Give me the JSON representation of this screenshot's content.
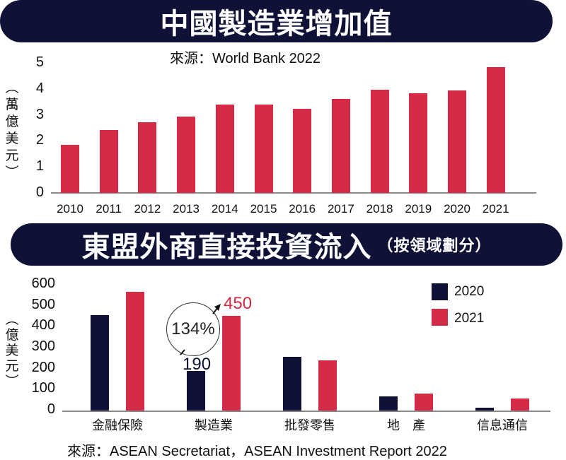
{
  "chart_data": [
    {
      "type": "bar",
      "title": "中國製造業增加值",
      "subtitle": "來源：World Bank 2022",
      "xlabel": "",
      "ylabel": "（萬億美元）",
      "ylim": [
        0,
        5
      ],
      "yticks": [
        0,
        1,
        2,
        3,
        4,
        5
      ],
      "grid": false,
      "categories": [
        "2010",
        "2011",
        "2012",
        "2013",
        "2014",
        "2015",
        "2016",
        "2017",
        "2018",
        "2019",
        "2020",
        "2021"
      ],
      "values": [
        1.85,
        2.43,
        2.72,
        2.93,
        3.39,
        3.39,
        3.23,
        3.62,
        3.97,
        3.84,
        3.95,
        4.84
      ],
      "color": "#d42a46"
    },
    {
      "type": "bar",
      "title": "東盟外商直接投資流入",
      "subtitle": "（按領域劃分）",
      "source": "來源：ASEAN Secretariat，ASEAN Investment Report 2022",
      "xlabel": "",
      "ylabel": "（億美元）",
      "ylim": [
        0,
        600
      ],
      "yticks": [
        0,
        100,
        200,
        300,
        400,
        500,
        600
      ],
      "grid": false,
      "legend_position": "top-right",
      "categories": [
        "金融保險",
        "製造業",
        "批發零售",
        "地　產",
        "信息通信"
      ],
      "series": [
        {
          "name": "2020",
          "color": "#0f1236",
          "values": [
            455,
            190,
            255,
            67,
            15
          ]
        },
        {
          "name": "2021",
          "color": "#d42a46",
          "values": [
            565,
            450,
            240,
            81,
            58
          ]
        }
      ],
      "annotations": [
        {
          "text": "134%",
          "type": "circle",
          "category": "製造業"
        },
        {
          "text": "190",
          "category": "製造業",
          "series": "2020"
        },
        {
          "text": "450",
          "category": "製造業",
          "series": "2021"
        }
      ]
    }
  ],
  "chart1": {
    "title": "中國製造業增加值",
    "source": "來源：World Bank 2022",
    "ylabel_chars": [
      "︵",
      "萬",
      "億",
      "美",
      "元",
      "︶"
    ],
    "yticks": [
      "5",
      "4",
      "3",
      "2",
      "1",
      "0"
    ],
    "categories": [
      "2010",
      "2011",
      "2012",
      "2013",
      "2014",
      "2015",
      "2016",
      "2017",
      "2018",
      "2019",
      "2020",
      "2021"
    ]
  },
  "chart2": {
    "title": "東盟外商直接投資流入",
    "subtitle": "（按領域劃分）",
    "source": "來源：ASEAN Secretariat，ASEAN Investment Report 2022",
    "ylabel_chars": [
      "︵",
      "億",
      "美",
      "元",
      "︶"
    ],
    "yticks": [
      "600",
      "500",
      "400",
      "300",
      "200",
      "100",
      "0"
    ],
    "categories": [
      "金融保險",
      "製造業",
      "批發零售",
      "地　產",
      "信息通信"
    ],
    "legend": [
      "2020",
      "2021"
    ],
    "annot_pct": "134%",
    "annot_2020": "190",
    "annot_2021": "450"
  }
}
